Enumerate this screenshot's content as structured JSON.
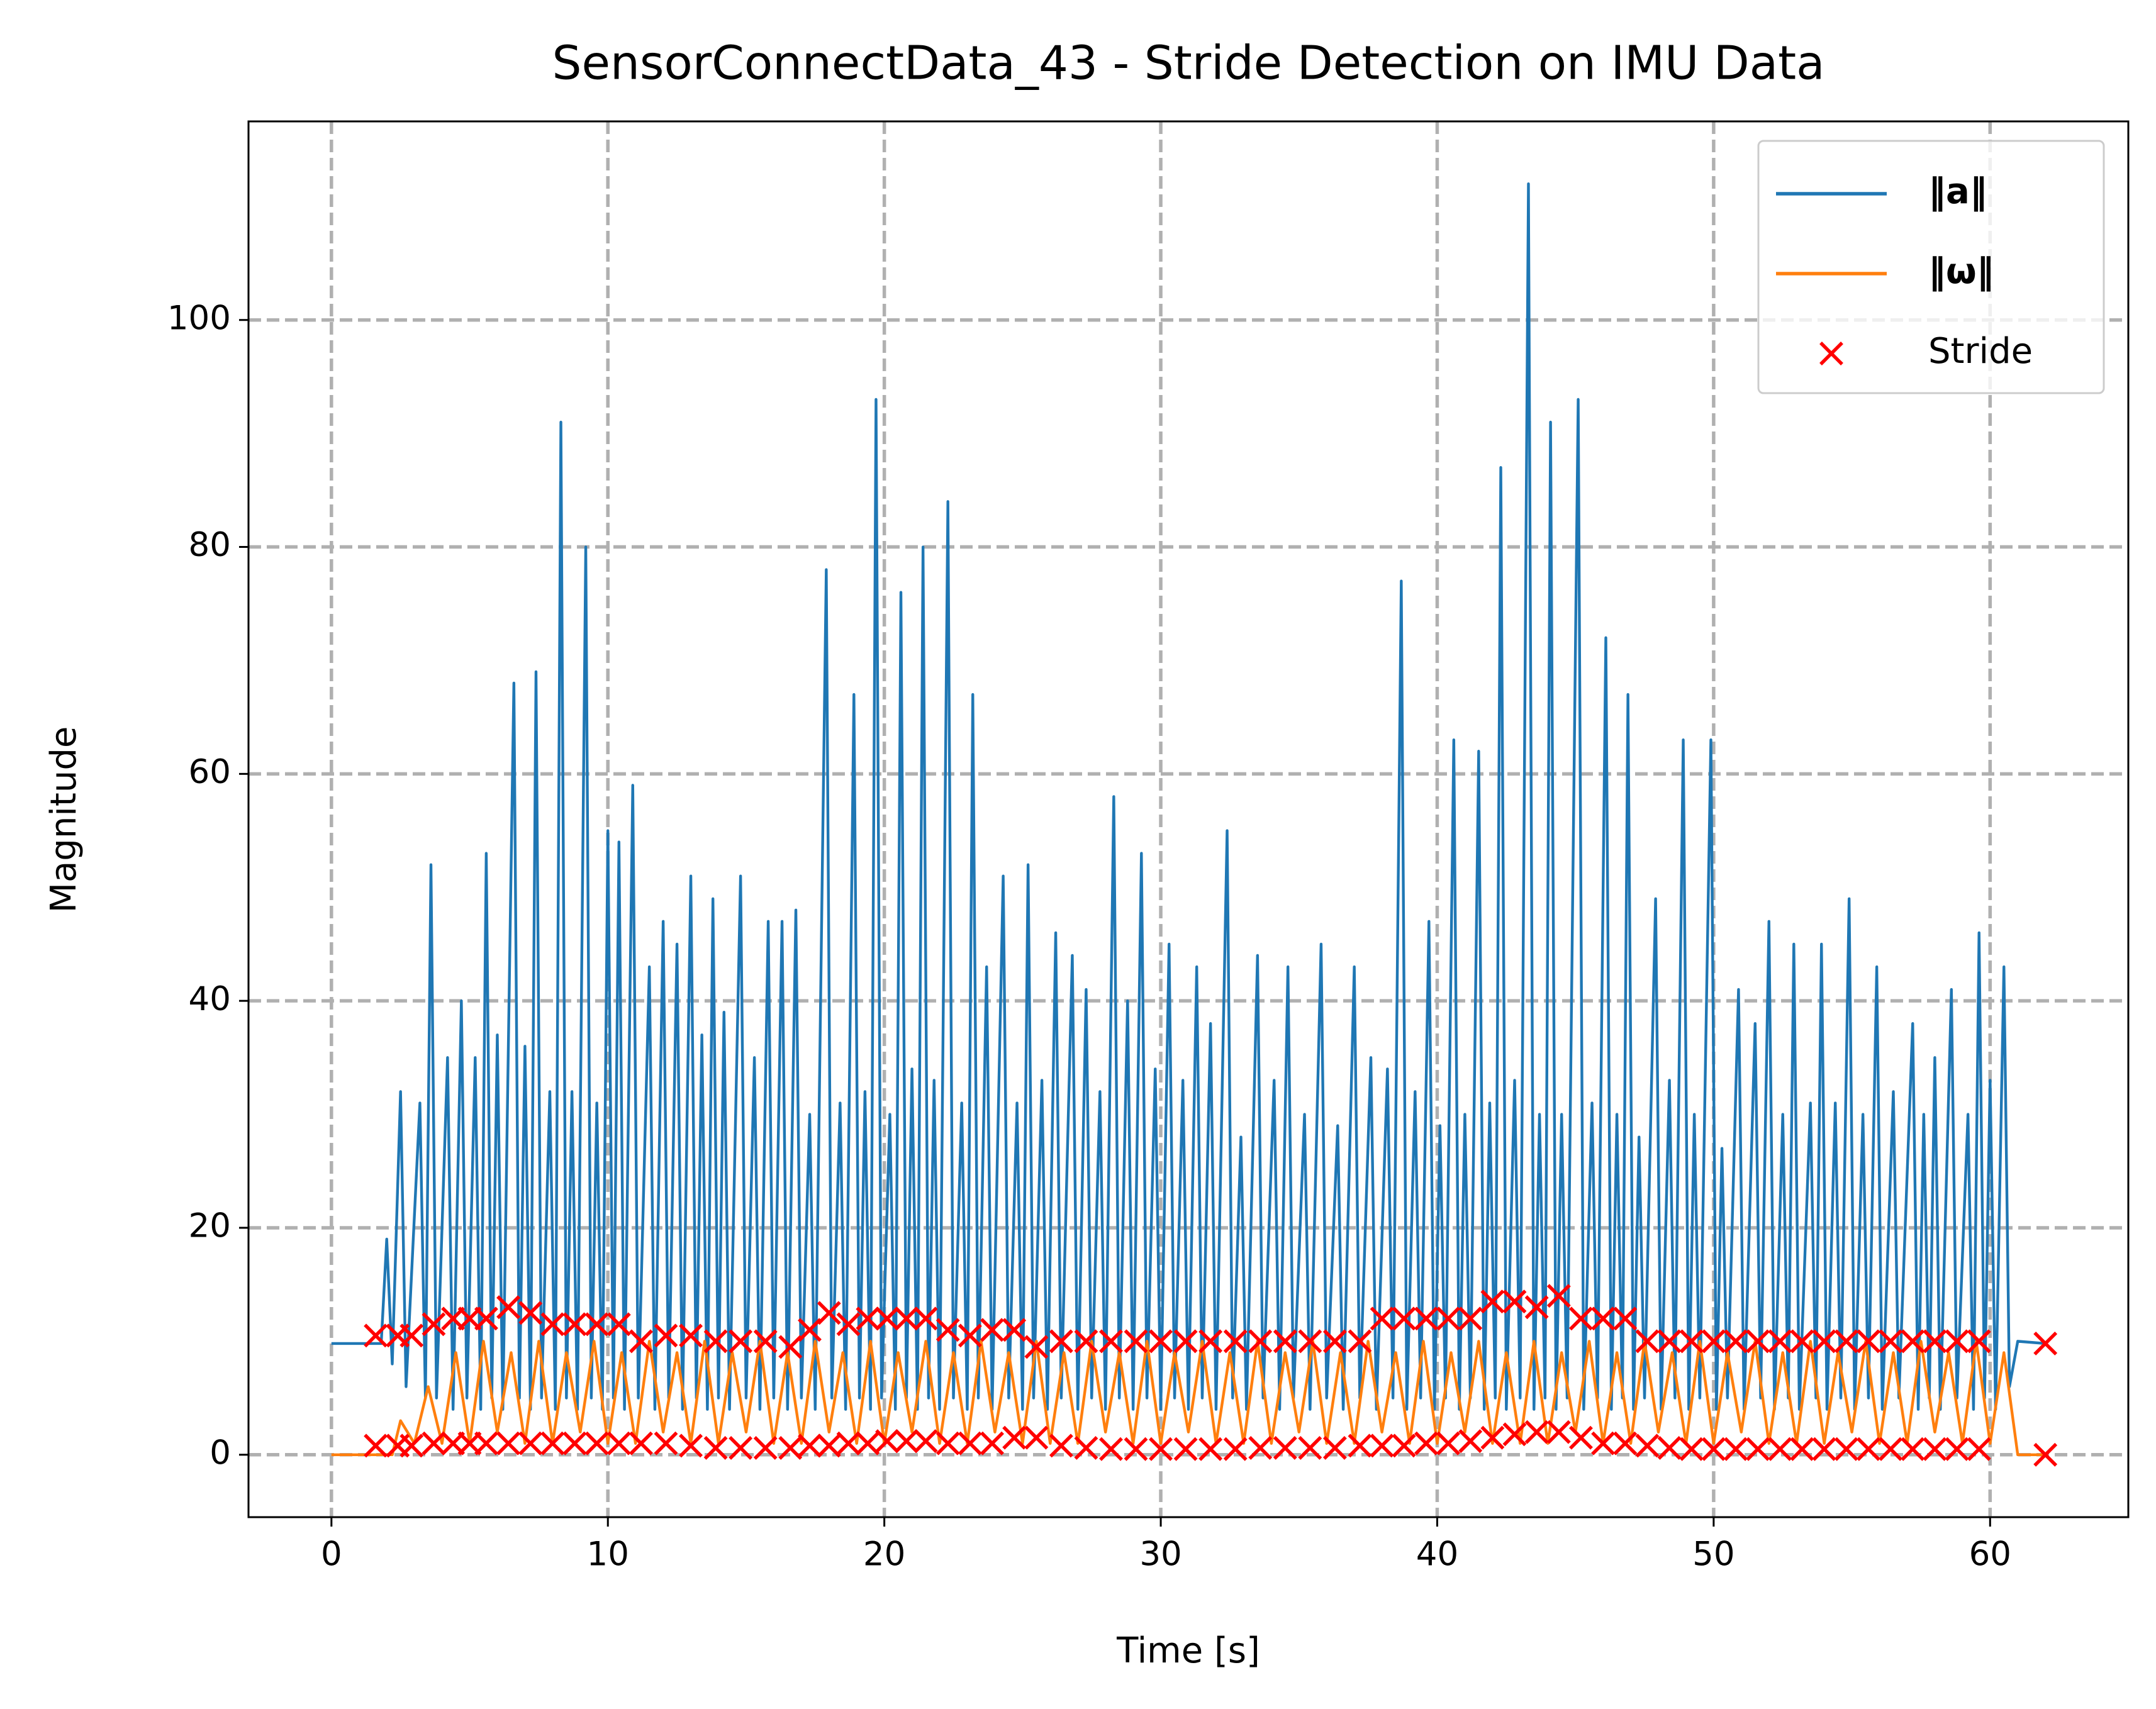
{
  "chart_data": {
    "type": "line",
    "title": "SensorConnectData_43 - Stride Detection on IMU Data",
    "xlabel": "Time [s]",
    "ylabel": "Magnitude",
    "xlim": [
      -3,
      65
    ],
    "ylim": [
      -5.5,
      117.5
    ],
    "xticks": [
      0,
      10,
      20,
      30,
      40,
      50,
      60
    ],
    "yticks": [
      0,
      20,
      40,
      60,
      80,
      100
    ],
    "grid": true,
    "legend": "upper right",
    "series": [
      {
        "name": "‖a‖",
        "type": "line",
        "color": "#1f77b4",
        "x": [
          0,
          1.8,
          2.0,
          2.2,
          2.5,
          2.7,
          3.2,
          3.4,
          3.6,
          3.8,
          4.2,
          4.4,
          4.7,
          4.9,
          5.2,
          5.4,
          5.6,
          5.8,
          6.0,
          6.2,
          6.6,
          6.8,
          7.0,
          7.2,
          7.4,
          7.6,
          7.9,
          8.1,
          8.3,
          8.5,
          8.7,
          8.9,
          9.2,
          9.4,
          9.6,
          9.8,
          10.0,
          10.2,
          10.4,
          10.6,
          10.9,
          11.1,
          11.5,
          11.7,
          12.0,
          12.2,
          12.5,
          12.7,
          13.0,
          13.2,
          13.4,
          13.6,
          13.8,
          14.0,
          14.2,
          14.4,
          14.8,
          15.0,
          15.3,
          15.5,
          15.8,
          16.0,
          16.3,
          16.5,
          16.8,
          17.0,
          17.3,
          17.5,
          17.9,
          18.1,
          18.4,
          18.6,
          18.9,
          19.1,
          19.3,
          19.5,
          19.7,
          19.9,
          20.2,
          20.4,
          20.6,
          20.8,
          21.0,
          21.2,
          21.4,
          21.6,
          21.8,
          22.0,
          22.3,
          22.5,
          22.8,
          23.0,
          23.2,
          23.4,
          23.7,
          23.9,
          24.3,
          24.5,
          24.8,
          25.0,
          25.2,
          25.4,
          25.7,
          25.9,
          26.2,
          26.4,
          26.8,
          27.0,
          27.3,
          27.5,
          27.8,
          28.0,
          28.3,
          28.5,
          28.8,
          29.0,
          29.3,
          29.5,
          29.8,
          30.0,
          30.3,
          30.5,
          30.8,
          31.0,
          31.3,
          31.5,
          31.8,
          32.0,
          32.4,
          32.6,
          32.9,
          33.1,
          33.5,
          33.7,
          34.1,
          34.3,
          34.6,
          34.8,
          35.2,
          35.4,
          35.8,
          36.0,
          36.4,
          36.6,
          37.0,
          37.2,
          37.6,
          37.8,
          38.2,
          38.4,
          38.7,
          38.9,
          39.2,
          39.4,
          39.7,
          39.9,
          40.1,
          40.3,
          40.6,
          40.8,
          41.0,
          41.2,
          41.5,
          41.7,
          41.9,
          42.1,
          42.3,
          42.5,
          42.8,
          43.0,
          43.3,
          43.5,
          43.7,
          43.9,
          44.1,
          44.3,
          44.5,
          44.7,
          45.1,
          45.3,
          45.6,
          45.8,
          46.1,
          46.3,
          46.5,
          46.7,
          46.9,
          47.1,
          47.3,
          47.5,
          47.9,
          48.1,
          48.4,
          48.6,
          48.9,
          49.1,
          49.3,
          49.5,
          49.9,
          50.1,
          50.3,
          50.5,
          50.9,
          51.1,
          51.5,
          51.7,
          52.0,
          52.2,
          52.5,
          52.7,
          52.9,
          53.1,
          53.5,
          53.7,
          53.9,
          54.1,
          54.4,
          54.6,
          54.9,
          55.1,
          55.4,
          55.6,
          55.9,
          56.1,
          56.5,
          56.7,
          57.2,
          57.4,
          57.6,
          57.8,
          58.0,
          58.2,
          58.6,
          58.8,
          59.2,
          59.4,
          59.6,
          59.8,
          60.0,
          60.2,
          60.5,
          60.7,
          61.0,
          62.0
        ],
        "values": [
          9.8,
          9.8,
          19,
          8,
          32,
          6,
          31,
          5,
          52,
          5,
          35,
          4,
          40,
          5,
          35,
          4,
          53,
          5,
          37,
          4,
          68,
          5,
          36,
          4,
          69,
          5,
          32,
          4,
          91,
          5,
          32,
          4,
          80,
          5,
          31,
          4,
          55,
          5,
          54,
          4,
          59,
          5,
          43,
          4,
          47,
          5,
          45,
          4,
          51,
          5,
          37,
          4,
          49,
          5,
          39,
          4,
          51,
          5,
          35,
          4,
          47,
          5,
          47,
          4,
          48,
          5,
          30,
          4,
          78,
          5,
          31,
          4,
          67,
          5,
          32,
          4,
          93,
          5,
          30,
          4,
          76,
          5,
          34,
          4,
          80,
          5,
          33,
          4,
          84,
          5,
          31,
          4,
          67,
          5,
          43,
          4,
          51,
          5,
          31,
          4,
          52,
          5,
          33,
          4,
          46,
          5,
          44,
          4,
          41,
          5,
          32,
          4,
          58,
          5,
          40,
          4,
          53,
          5,
          34,
          4,
          45,
          5,
          33,
          4,
          43,
          5,
          38,
          4,
          55,
          5,
          28,
          4,
          44,
          5,
          33,
          4,
          43,
          5,
          30,
          4,
          45,
          5,
          29,
          4,
          43,
          5,
          35,
          4,
          34,
          5,
          77,
          4,
          32,
          5,
          47,
          4,
          29,
          5,
          63,
          4,
          30,
          5,
          62,
          4,
          31,
          5,
          87,
          4,
          33,
          5,
          112,
          4,
          30,
          5,
          91,
          4,
          30,
          5,
          93,
          4,
          31,
          5,
          72,
          4,
          30,
          5,
          67,
          4,
          28,
          5,
          49,
          4,
          33,
          5,
          63,
          4,
          30,
          5,
          63,
          4,
          27,
          5,
          41,
          4,
          38,
          5,
          47,
          4,
          30,
          5,
          45,
          4,
          31,
          5,
          45,
          4,
          31,
          5,
          49,
          4,
          30,
          5,
          43,
          4,
          32,
          5,
          38,
          4,
          30,
          5,
          35,
          4,
          41,
          5,
          30,
          4,
          46,
          5,
          33,
          4,
          43,
          6,
          10,
          9.8
        ]
      },
      {
        "name": "‖ω‖",
        "type": "line",
        "color": "#ff7f0e",
        "x": [
          0,
          2.2,
          2.5,
          3.0,
          3.5,
          4.0,
          4.5,
          5.0,
          5.5,
          6.0,
          6.5,
          7.0,
          7.5,
          8.0,
          8.5,
          9.0,
          9.5,
          10.0,
          10.5,
          11.0,
          11.5,
          12.0,
          12.5,
          13.0,
          13.5,
          14.0,
          14.5,
          15.0,
          15.5,
          16.0,
          16.5,
          17.0,
          17.5,
          18.0,
          18.5,
          19.0,
          19.5,
          20.0,
          20.5,
          21.0,
          21.5,
          22.0,
          22.5,
          23.0,
          23.5,
          24.0,
          24.5,
          25.0,
          25.5,
          26.0,
          26.5,
          27.0,
          27.5,
          28.0,
          28.5,
          29.0,
          29.5,
          30.0,
          30.5,
          31.0,
          31.5,
          32.0,
          32.5,
          33.0,
          33.5,
          34.0,
          34.5,
          35.0,
          35.5,
          36.0,
          36.5,
          37.0,
          37.5,
          38.0,
          38.5,
          39.0,
          39.5,
          40.0,
          40.5,
          41.0,
          41.5,
          42.0,
          42.5,
          43.0,
          43.5,
          44.0,
          44.5,
          45.0,
          45.5,
          46.0,
          46.5,
          47.0,
          47.5,
          48.0,
          48.5,
          49.0,
          49.5,
          50.0,
          50.5,
          51.0,
          51.5,
          52.0,
          52.5,
          53.0,
          53.5,
          54.0,
          54.5,
          55.0,
          55.5,
          56.0,
          56.5,
          57.0,
          57.5,
          58.0,
          58.5,
          59.0,
          59.5,
          60.0,
          60.5,
          61.0,
          62.0
        ],
        "values": [
          0,
          0,
          3,
          1,
          6,
          1,
          9,
          1,
          10,
          2,
          9,
          1,
          10,
          1,
          9,
          2,
          10,
          1,
          9,
          1,
          10,
          2,
          9,
          1,
          10,
          1,
          9,
          2,
          10,
          1,
          9,
          1,
          10,
          2,
          9,
          1,
          10,
          1,
          9,
          2,
          10,
          1,
          9,
          1,
          10,
          2,
          9,
          1,
          10,
          1,
          9,
          1,
          10,
          2,
          9,
          1,
          10,
          1,
          9,
          2,
          10,
          1,
          9,
          1,
          10,
          1,
          9,
          2,
          10,
          1,
          9,
          1,
          10,
          2,
          9,
          1,
          10,
          1,
          9,
          2,
          10,
          1,
          9,
          1,
          10,
          1,
          9,
          2,
          10,
          1,
          9,
          1,
          10,
          2,
          9,
          1,
          10,
          1,
          9,
          2,
          10,
          1,
          9,
          1,
          10,
          1,
          9,
          2,
          10,
          1,
          9,
          1,
          10,
          2,
          9,
          1,
          10,
          1,
          9,
          0,
          0
        ]
      },
      {
        "name": "Stride",
        "type": "scatter",
        "color": "#ff0000",
        "x": [
          1.6,
          2.4,
          2.9,
          3.7,
          4.4,
          5.0,
          5.6,
          6.4,
          7.2,
          8.0,
          8.8,
          9.6,
          10.4,
          11.2,
          12.1,
          13.0,
          13.9,
          14.8,
          15.7,
          16.6,
          17.3,
          18.0,
          18.7,
          19.4,
          20.1,
          20.8,
          21.5,
          22.3,
          23.1,
          23.9,
          24.7,
          25.5,
          26.4,
          27.3,
          28.2,
          29.1,
          30.0,
          30.9,
          31.8,
          32.7,
          33.6,
          34.5,
          35.4,
          36.3,
          37.2,
          38.0,
          38.8,
          39.6,
          40.4,
          41.2,
          42.0,
          42.8,
          43.6,
          44.4,
          45.2,
          46.0,
          46.8,
          47.6,
          48.4,
          49.2,
          50.0,
          50.8,
          51.6,
          52.4,
          53.2,
          54.0,
          54.8,
          55.6,
          56.4,
          57.2,
          58.0,
          58.8,
          59.6,
          62.0,
          1.6,
          2.4,
          2.9,
          3.7,
          4.4,
          5.0,
          5.6,
          6.4,
          7.2,
          8.0,
          8.8,
          9.6,
          10.4,
          11.2,
          12.1,
          13.0,
          13.9,
          14.8,
          15.7,
          16.6,
          17.3,
          18.0,
          18.7,
          19.4,
          20.1,
          20.8,
          21.5,
          22.3,
          23.1,
          23.9,
          24.7,
          25.5,
          26.4,
          27.3,
          28.2,
          29.1,
          30.0,
          30.9,
          31.8,
          32.7,
          33.6,
          34.5,
          35.4,
          36.3,
          37.2,
          38.0,
          38.8,
          39.6,
          40.4,
          41.2,
          42.0,
          42.8,
          43.6,
          44.4,
          45.2,
          46.0,
          46.8,
          47.6,
          48.4,
          49.2,
          50.0,
          50.8,
          51.6,
          52.4,
          53.2,
          54.0,
          54.8,
          55.6,
          56.4,
          57.2,
          58.0,
          58.8,
          59.6,
          62.0
        ],
        "values": [
          10.5,
          10.5,
          10.5,
          11.5,
          12,
          12,
          12,
          13,
          12.5,
          11.5,
          11.5,
          11.5,
          11.5,
          10,
          10.5,
          10.5,
          10,
          10,
          10,
          9.5,
          11,
          12.5,
          11.5,
          12,
          12,
          12,
          12,
          11,
          10.5,
          11,
          11,
          9.5,
          10,
          10,
          10,
          10,
          10,
          10,
          10,
          10,
          10,
          10,
          10,
          10,
          10,
          12,
          12,
          12,
          12,
          12,
          13.5,
          13.5,
          13,
          14,
          12,
          12,
          12,
          10,
          10,
          10,
          10,
          10,
          10,
          10,
          10,
          10,
          10,
          10,
          10,
          10,
          10,
          10,
          10,
          9.8,
          0.8,
          0.8,
          0.8,
          1,
          1,
          1,
          1,
          1,
          1,
          1,
          1,
          1,
          1,
          1,
          1,
          0.8,
          0.6,
          0.6,
          0.6,
          0.6,
          0.8,
          0.8,
          1,
          1,
          1.2,
          1.2,
          1.2,
          1,
          1,
          1,
          1.5,
          1.5,
          0.8,
          0.6,
          0.5,
          0.5,
          0.5,
          0.5,
          0.5,
          0.5,
          0.6,
          0.6,
          0.6,
          0.6,
          0.8,
          0.8,
          0.8,
          1,
          1,
          1.2,
          1.5,
          1.8,
          2,
          2,
          1.5,
          1,
          1,
          0.8,
          0.6,
          0.5,
          0.5,
          0.5,
          0.5,
          0.5,
          0.5,
          0.5,
          0.5,
          0.5,
          0.5,
          0.5,
          0.5,
          0.5,
          0.5,
          0
        ]
      }
    ]
  }
}
